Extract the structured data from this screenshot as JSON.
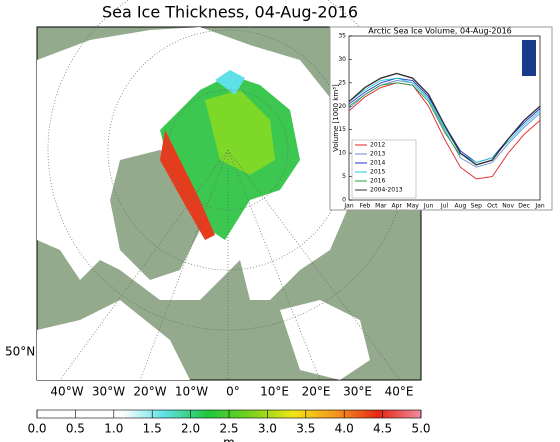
{
  "title": "Sea Ice Thickness, 04-Aug-2016",
  "map": {
    "lat_labels": [
      "50°N"
    ],
    "lon_labels": [
      "40°W",
      "30°W",
      "20°W",
      "10°W",
      "0°",
      "10°E",
      "20°E",
      "30°E",
      "40°E"
    ]
  },
  "colorbar": {
    "unit": "m",
    "colors": [
      "#ffffff",
      "#ffffff",
      "#ffffff",
      "#5ee0e6",
      "#1ec83c",
      "#78d21e",
      "#f0e614",
      "#f5961e",
      "#e62814",
      "#f08ca0"
    ],
    "ticks": [
      {
        "value": 0,
        "label": "0.0"
      },
      {
        "value": 0.5,
        "label": "0.5"
      },
      {
        "value": 1,
        "label": "1.0"
      },
      {
        "value": 1.5,
        "label": "1.5"
      },
      {
        "value": 2,
        "label": "2.0"
      },
      {
        "value": 2.5,
        "label": "2.5"
      },
      {
        "value": 3,
        "label": "3.0"
      },
      {
        "value": 3.5,
        "label": "3.5"
      },
      {
        "value": 4,
        "label": "4.0"
      },
      {
        "value": 4.5,
        "label": "4.5"
      },
      {
        "value": 5,
        "label": "5.0"
      }
    ]
  },
  "chart_data": {
    "type": "line",
    "title": "Arctic Sea Ice Volume, 04-Aug-2016",
    "y_label": "Volume [1000 km³]",
    "categories": [
      "Jan",
      "Feb",
      "Mar",
      "Apr",
      "May",
      "Jun",
      "Jul",
      "Aug",
      "Sep",
      "Oct",
      "Nov",
      "Dec",
      "Jan"
    ],
    "ylim": [
      0,
      35
    ],
    "yticks": [
      0,
      5,
      10,
      15,
      20,
      25,
      30,
      35
    ],
    "legend": "lower left",
    "series": [
      {
        "name": "2012",
        "color": "#e02020",
        "values": [
          19,
          22,
          24,
          25,
          24.5,
          20,
          13,
          7,
          4.5,
          5,
          10,
          14,
          17
        ]
      },
      {
        "name": "2013",
        "color": "#6a8fd0",
        "values": [
          19.5,
          22.5,
          24.5,
          25.5,
          25,
          21.5,
          15,
          9,
          7,
          8,
          12,
          15.5,
          18.5
        ]
      },
      {
        "name": "2014",
        "color": "#2030d0",
        "values": [
          20.5,
          23,
          25,
          26,
          25.5,
          22,
          16,
          10.5,
          8,
          9,
          13,
          16.5,
          19.5
        ]
      },
      {
        "name": "2015",
        "color": "#20c8d8",
        "values": [
          21,
          23.5,
          25.5,
          26,
          25,
          21.5,
          15.5,
          10,
          8,
          9,
          12.5,
          16,
          19
        ]
      },
      {
        "name": "2016",
        "color": "#20a040",
        "values": [
          20,
          22.5,
          24.5,
          25,
          24.5,
          21,
          14.5,
          9.5,
          null,
          null,
          null,
          null,
          null
        ]
      },
      {
        "name": "2004-2013",
        "color": "#333333",
        "values": [
          21,
          24,
          26,
          27,
          26,
          22.5,
          16,
          10,
          7.5,
          8.5,
          13,
          17,
          20
        ]
      }
    ]
  }
}
